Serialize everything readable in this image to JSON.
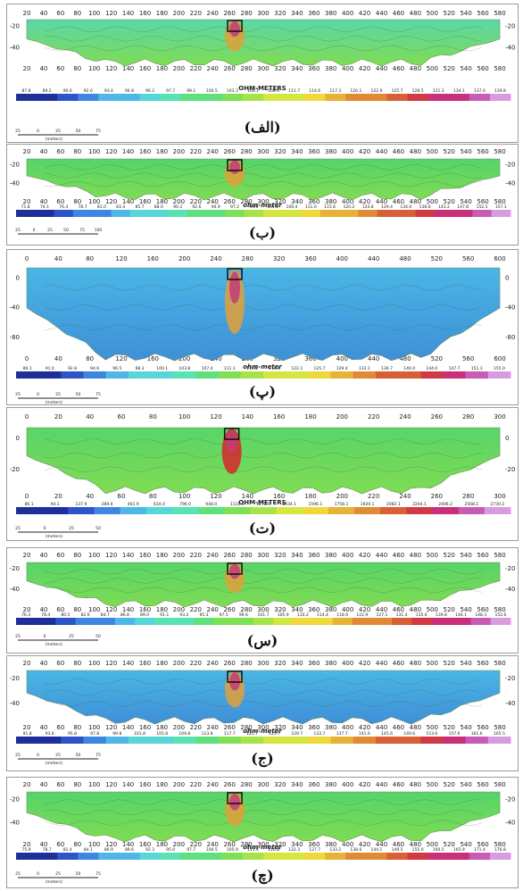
{
  "panels": [
    {
      "label": "(الف)",
      "xticks": [
        "20",
        "40",
        "60",
        "80",
        "100",
        "120",
        "140",
        "160",
        "180",
        "200",
        "220",
        "240",
        "260",
        "280",
        "300",
        "320",
        "340",
        "360",
        "380",
        "400",
        "420",
        "440",
        "460",
        "480",
        "500",
        "520",
        "540",
        "560",
        "580"
      ],
      "yticks_left": [
        "-20",
        "-40"
      ],
      "yticks_right": [
        "-20",
        "-40"
      ],
      "unit": "OHM-METERS",
      "scale_values": [
        "87.8",
        "89.2",
        "90.6",
        "92.0",
        "93.4",
        "94.8",
        "96.2",
        "97.7",
        "99.1",
        "100.5",
        "103.3",
        "106.1",
        "108.9",
        "111.7",
        "114.6",
        "117.3",
        "120.1",
        "122.9",
        "125.7",
        "128.5",
        "131.3",
        "134.1",
        "137.0",
        "139.8"
      ],
      "scale_bar": [
        "25",
        "0",
        "25",
        "50",
        "75"
      ],
      "scale_unit": "(meters)",
      "palette": "base"
    },
    {
      "label": "(ب)",
      "xticks": [
        "20",
        "40",
        "60",
        "80",
        "100",
        "120",
        "140",
        "160",
        "180",
        "200",
        "220",
        "240",
        "260",
        "280",
        "300",
        "320",
        "340",
        "360",
        "380",
        "400",
        "420",
        "440",
        "460",
        "480",
        "500",
        "520",
        "540",
        "560",
        "580"
      ],
      "yticks_left": [
        "-20",
        "-40"
      ],
      "yticks_right": [
        "-20",
        "-40"
      ],
      "unit": "ohm-meter",
      "scale_values": [
        "71.8",
        "74.1",
        "76.4",
        "78.7",
        "81.0",
        "83.4",
        "85.7",
        "88.0",
        "90.3",
        "92.6",
        "94.9",
        "97.2",
        "99.5",
        "101.8",
        "106.4",
        "111.0",
        "115.6",
        "120.2",
        "124.8",
        "129.4",
        "134.0",
        "138.6",
        "143.2",
        "147.8",
        "152.5",
        "157.1"
      ],
      "scale_bar": [
        "25",
        "0",
        "25",
        "50",
        "75",
        "100"
      ],
      "scale_unit": "",
      "palette": "green"
    },
    {
      "label": "(پ)",
      "xticks": [
        "0",
        "40",
        "80",
        "120",
        "160",
        "200",
        "240",
        "280",
        "320",
        "360",
        "400",
        "440",
        "480",
        "520",
        "560",
        "600"
      ],
      "yticks_left": [
        "0",
        "-40",
        "-80"
      ],
      "yticks_right": [
        "0",
        "-40",
        "-80"
      ],
      "unit": "ohm-meter",
      "scale_values": [
        "89.1",
        "91.0",
        "92.8",
        "94.6",
        "96.5",
        "98.3",
        "100.1",
        "103.8",
        "107.4",
        "111.1",
        "114.8",
        "118.4",
        "122.1",
        "125.7",
        "129.4",
        "133.1",
        "136.7",
        "140.4",
        "144.0",
        "147.7",
        "151.3",
        "155.0"
      ],
      "scale_bar": [
        "25",
        "0",
        "25",
        "50",
        "75"
      ],
      "scale_unit": "(meters)",
      "palette": "blue"
    },
    {
      "label": "(ت)",
      "xticks": [
        "0",
        "20",
        "40",
        "60",
        "80",
        "100",
        "120",
        "140",
        "160",
        "180",
        "200",
        "220",
        "240",
        "260",
        "280",
        "300"
      ],
      "yticks_left": [
        "0",
        "-20"
      ],
      "yticks_right": [
        "0",
        "-20"
      ],
      "unit": "OHM-METERS",
      "scale_values": [
        "86.1",
        "94.1",
        "137.9",
        "289.6",
        "461.9",
        "634.0",
        "796.0",
        "948.0",
        "1110.0",
        "1272.5",
        "1434.1",
        "1596.1",
        "1758.1",
        "1920.1",
        "2082.1",
        "2244.1",
        "2406.2",
        "2568.2",
        "2730.2"
      ],
      "scale_bar": [
        "25",
        "0",
        "25",
        "50"
      ],
      "scale_unit": "(meters)",
      "palette": "warm"
    },
    {
      "label": "(س)",
      "xticks": [
        "20",
        "40",
        "60",
        "80",
        "100",
        "120",
        "140",
        "160",
        "180",
        "200",
        "220",
        "240",
        "260",
        "280",
        "300",
        "320",
        "340",
        "360",
        "380",
        "400",
        "420",
        "440",
        "460",
        "480",
        "500",
        "520",
        "540",
        "560",
        "580"
      ],
      "yticks_left": [
        "-20",
        "-40"
      ],
      "yticks_right": [
        "-20",
        "-40"
      ],
      "unit": "",
      "scale_values": [
        "76.3",
        "78.4",
        "80.5",
        "82.6",
        "84.7",
        "86.8",
        "89.0",
        "91.1",
        "93.2",
        "95.3",
        "97.5",
        "99.6",
        "101.7",
        "105.9",
        "110.2",
        "114.4",
        "118.6",
        "122.9",
        "127.1",
        "131.4",
        "135.6",
        "139.8",
        "144.1",
        "148.3",
        "152.6"
      ],
      "scale_bar": [
        "25",
        "0",
        "25",
        "50"
      ],
      "scale_unit": "(meters)",
      "palette": "green"
    },
    {
      "label": "(ج)",
      "xticks": [
        "20",
        "40",
        "60",
        "80",
        "100",
        "120",
        "140",
        "160",
        "180",
        "200",
        "220",
        "240",
        "260",
        "280",
        "300",
        "320",
        "340",
        "360",
        "380",
        "400",
        "420",
        "440",
        "460",
        "480",
        "500",
        "520",
        "540",
        "560",
        "580"
      ],
      "yticks_left": [
        "-20",
        "-40"
      ],
      "yticks_right": [
        "-20",
        "-40"
      ],
      "unit": "ohm-meter",
      "scale_values": [
        "91.8",
        "93.8",
        "95.8",
        "97.8",
        "99.8",
        "101.8",
        "105.8",
        "109.8",
        "113.8",
        "117.7",
        "121.7",
        "125.7",
        "129.7",
        "133.7",
        "137.7",
        "141.6",
        "145.6",
        "149.6",
        "153.6",
        "157.6",
        "161.6",
        "165.5"
      ],
      "scale_bar": [
        "25",
        "0",
        "25",
        "50",
        "75"
      ],
      "scale_unit": "(meters)",
      "palette": "blue"
    },
    {
      "label": "(چ)",
      "xticks": [
        "20",
        "40",
        "60",
        "80",
        "100",
        "120",
        "140",
        "160",
        "180",
        "200",
        "220",
        "240",
        "260",
        "280",
        "300",
        "320",
        "340",
        "360",
        "380",
        "400",
        "420",
        "440",
        "460",
        "480",
        "500",
        "520",
        "540",
        "560",
        "580"
      ],
      "yticks_left": [
        "-20",
        "-40"
      ],
      "yticks_right": [
        "-20",
        "-40"
      ],
      "unit": "ohm-meter",
      "scale_values": [
        "75.9",
        "78.7",
        "81.4",
        "84.1",
        "86.9",
        "89.6",
        "92.3",
        "95.0",
        "97.7",
        "100.5",
        "105.9",
        "111.4",
        "116.8",
        "122.3",
        "127.7",
        "133.2",
        "138.6",
        "144.1",
        "149.5",
        "155.0",
        "160.5",
        "165.9",
        "171.4",
        "176.8"
      ],
      "scale_bar": [
        "25",
        "0",
        "25",
        "50",
        "75"
      ],
      "scale_unit": "(meters)",
      "palette": "green"
    }
  ],
  "palettes": {
    "base": [
      "#1f2f9a",
      "#2d54c9",
      "#3e86df",
      "#4fb7e8",
      "#57d6d8",
      "#58e3b0",
      "#5fe07d",
      "#7de055",
      "#a6e348",
      "#d4e640",
      "#f0d83a",
      "#e6b238",
      "#e08a36",
      "#d85f36",
      "#d13a44",
      "#c8307a",
      "#c85cb5",
      "#d99be0"
    ],
    "green": [
      "#1f2f9a",
      "#2d54c9",
      "#3e86df",
      "#4fb7e8",
      "#57d6d8",
      "#58e3b0",
      "#5fe07d",
      "#7de055",
      "#a6e348",
      "#d4e640",
      "#f0d83a",
      "#e6b238",
      "#e08a36",
      "#d85f36",
      "#d13a44",
      "#c8307a",
      "#c85cb5",
      "#d99be0"
    ],
    "blue": [
      "#1f2f9a",
      "#2d54c9",
      "#3e86df",
      "#4fb7e8",
      "#57d6d8",
      "#58e3b0",
      "#5fe07d",
      "#7de055",
      "#a6e348",
      "#d4e640",
      "#f0d83a",
      "#e6b238",
      "#e08a36",
      "#d85f36",
      "#d13a44",
      "#c8307a",
      "#c85cb5",
      "#d99be0"
    ],
    "warm": [
      "#1f2f9a",
      "#2d54c9",
      "#3e86df",
      "#4fb7e8",
      "#57d6d8",
      "#58e3b0",
      "#5fe07d",
      "#7de055",
      "#a6e348",
      "#d4e640",
      "#f0d83a",
      "#e6b238",
      "#e08a36",
      "#d85f36",
      "#d13a44",
      "#c8307a",
      "#c85cb5",
      "#d99be0"
    ]
  },
  "fills": {
    "base": "#5bd6a8",
    "green": "#56d36a",
    "blue": "#4ab6e6",
    "warm": "#59d46a"
  }
}
